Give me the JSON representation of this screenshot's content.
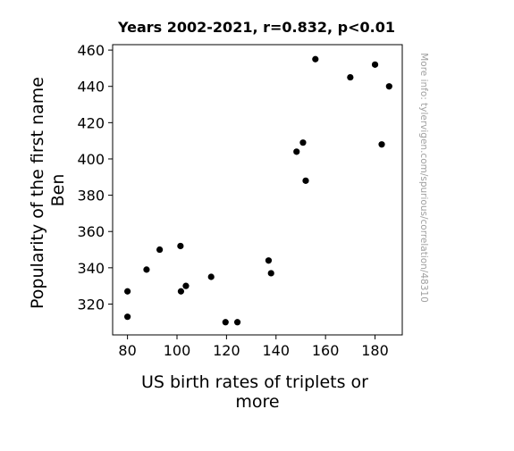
{
  "chart_data": {
    "type": "scatter",
    "title": "Years 2002-2021, r=0.832, p<0.01",
    "xlabel_lines": [
      "US birth rates of triplets or",
      "more"
    ],
    "ylabel_lines": [
      "Popularity of the first name",
      "Ben"
    ],
    "xlim": [
      74,
      191
    ],
    "ylim": [
      303,
      463
    ],
    "xticks": [
      80,
      100,
      120,
      140,
      160,
      180
    ],
    "yticks": [
      320,
      340,
      360,
      380,
      400,
      420,
      440,
      460
    ],
    "points": [
      {
        "x": 80.0,
        "y": 327
      },
      {
        "x": 80.0,
        "y": 313
      },
      {
        "x": 87.7,
        "y": 339
      },
      {
        "x": 93.0,
        "y": 350
      },
      {
        "x": 101.4,
        "y": 352
      },
      {
        "x": 101.6,
        "y": 327
      },
      {
        "x": 103.6,
        "y": 330
      },
      {
        "x": 113.8,
        "y": 335
      },
      {
        "x": 119.6,
        "y": 310
      },
      {
        "x": 124.4,
        "y": 310
      },
      {
        "x": 137.0,
        "y": 344
      },
      {
        "x": 138.0,
        "y": 337
      },
      {
        "x": 148.3,
        "y": 404
      },
      {
        "x": 150.9,
        "y": 409
      },
      {
        "x": 152.0,
        "y": 388
      },
      {
        "x": 155.9,
        "y": 455
      },
      {
        "x": 170.0,
        "y": 445
      },
      {
        "x": 180.0,
        "y": 452
      },
      {
        "x": 182.7,
        "y": 408
      },
      {
        "x": 185.7,
        "y": 440
      }
    ],
    "marker_color": "#000000",
    "grid": false,
    "legend": "none"
  },
  "watermark": "More info: tylervigen.com/spurious/correlation/48310"
}
